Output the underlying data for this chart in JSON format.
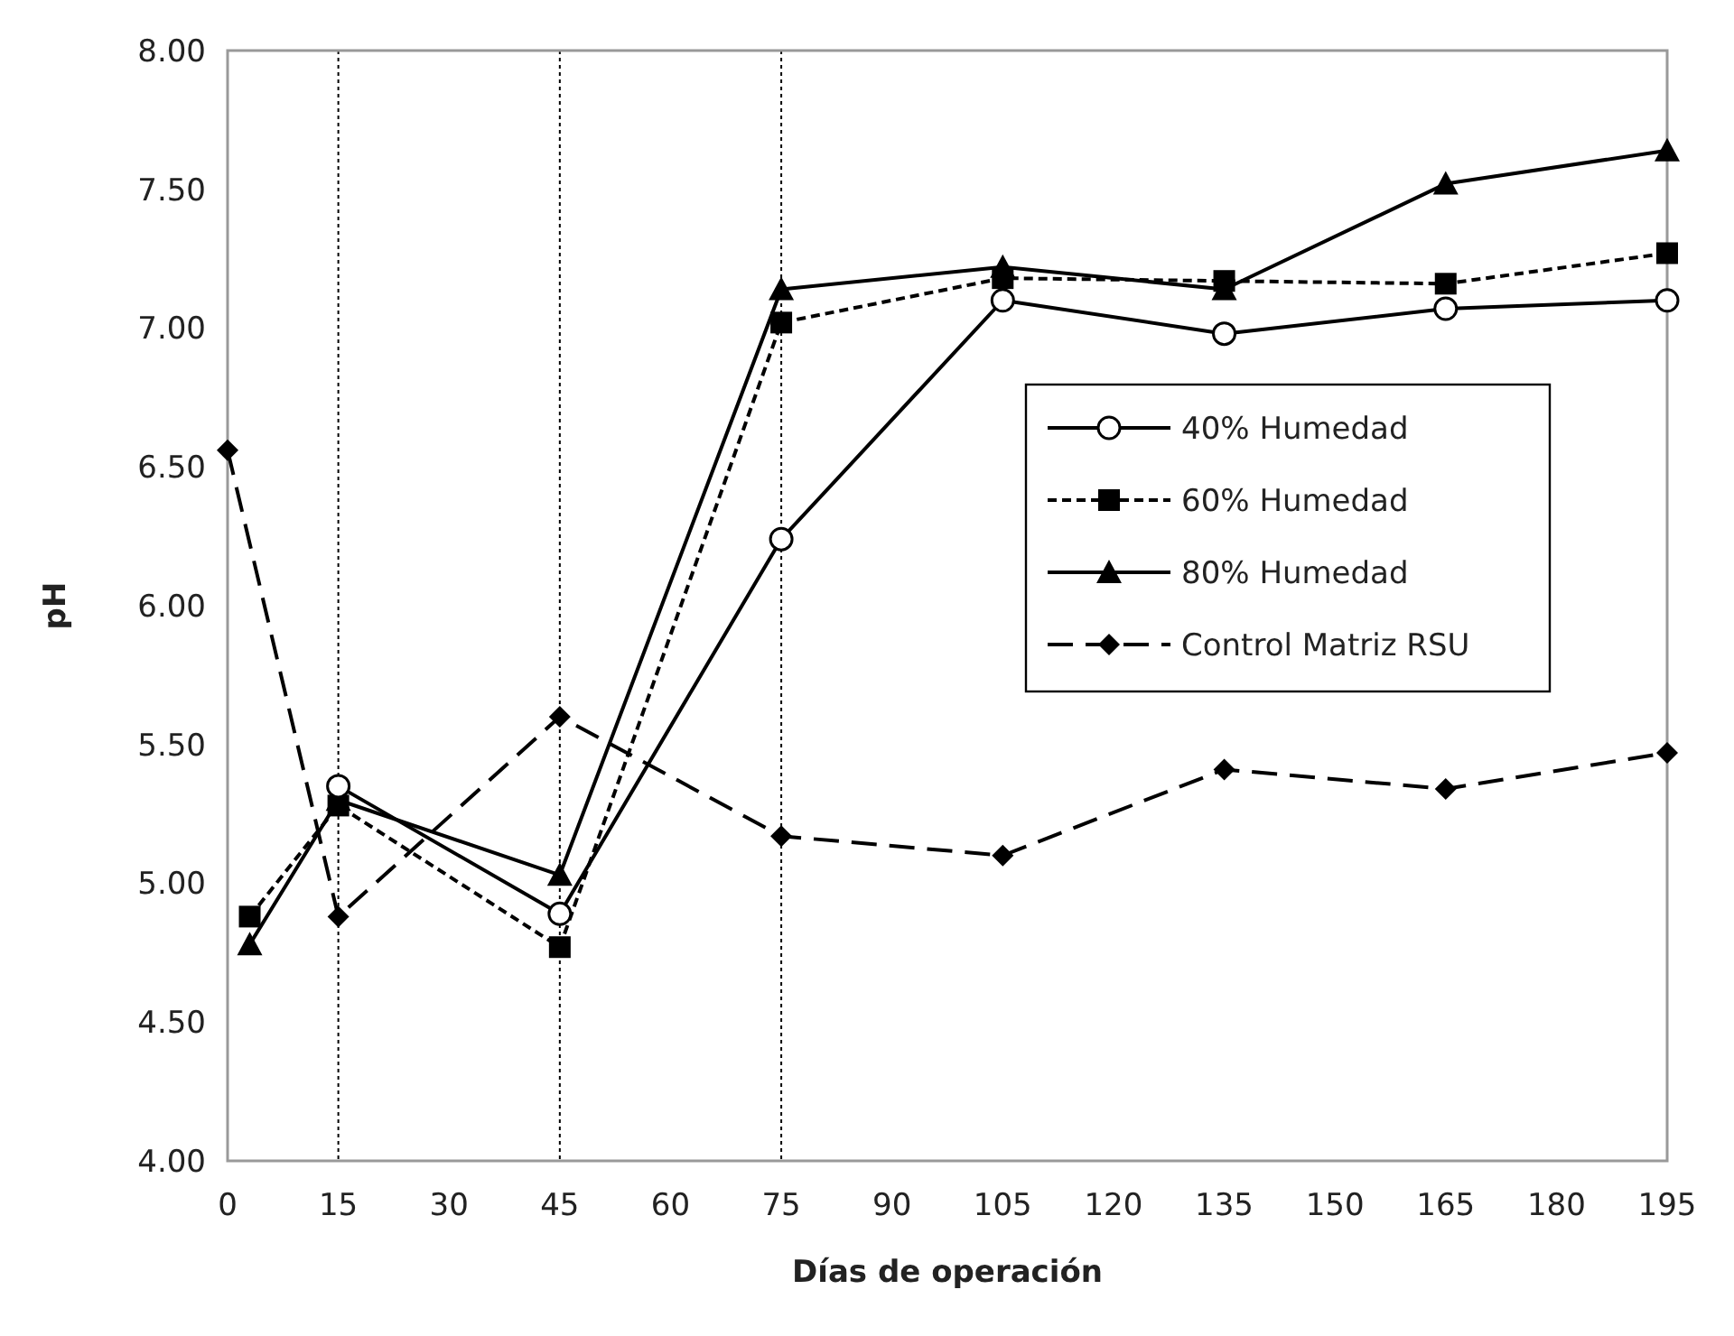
{
  "chart_data": {
    "type": "line",
    "xlabel": "Días de operación",
    "ylabel": "pH",
    "xlim": [
      0,
      195
    ],
    "ylim": [
      4,
      8
    ],
    "xticks": [
      0,
      15,
      30,
      45,
      60,
      75,
      90,
      105,
      120,
      135,
      150,
      165,
      180,
      195
    ],
    "yticks": [
      {
        "value": 4,
        "label": "4.00"
      },
      {
        "value": 4.5,
        "label": "4.50"
      },
      {
        "value": 5,
        "label": "5.00"
      },
      {
        "value": 5.5,
        "label": "5.50"
      },
      {
        "value": 6,
        "label": "6.00"
      },
      {
        "value": 6.5,
        "label": "6.50"
      },
      {
        "value": 7,
        "label": "7.00"
      },
      {
        "value": 7.5,
        "label": "7.50"
      },
      {
        "value": 8,
        "label": "8.00"
      }
    ],
    "grid": false,
    "legend": "right",
    "ref_lines": [
      {
        "axis": "x",
        "value": 15,
        "color": "#000000",
        "line_style": "dotted"
      },
      {
        "axis": "x",
        "value": 45,
        "color": "#000000",
        "line_style": "dotted"
      },
      {
        "axis": "x",
        "value": 75,
        "color": "#000000",
        "line_style": "dotted"
      }
    ],
    "series": [
      {
        "name": "40% Humedad",
        "color": "#000000",
        "marker": "circle",
        "line_style": "solid",
        "x": [
          15,
          45,
          75,
          105,
          135,
          165,
          195
        ],
        "values": [
          5.35,
          4.89,
          6.24,
          7.1,
          6.98,
          7.07,
          7.1
        ]
      },
      {
        "name": "60% Humedad",
        "color": "#000000",
        "marker": "square",
        "line_style": "dashed",
        "x": [
          3,
          15,
          45,
          75,
          105,
          135,
          165,
          195
        ],
        "values": [
          4.88,
          5.28,
          4.77,
          7.02,
          7.18,
          7.17,
          7.16,
          7.27
        ]
      },
      {
        "name": "80% Humedad",
        "color": "#000000",
        "marker": "triangle",
        "line_style": "solid",
        "x": [
          3,
          15,
          45,
          75,
          105,
          135,
          165,
          195
        ],
        "values": [
          4.78,
          5.3,
          5.03,
          7.14,
          7.22,
          7.14,
          7.52,
          7.64
        ]
      },
      {
        "name": "Control Matriz RSU",
        "color": "#000000",
        "marker": "diamond",
        "line_style": "longdash",
        "x": [
          0,
          15,
          45,
          75,
          105,
          135,
          165,
          195
        ],
        "values": [
          6.56,
          4.88,
          5.6,
          5.17,
          5.1,
          5.41,
          5.34,
          5.47
        ]
      }
    ]
  }
}
